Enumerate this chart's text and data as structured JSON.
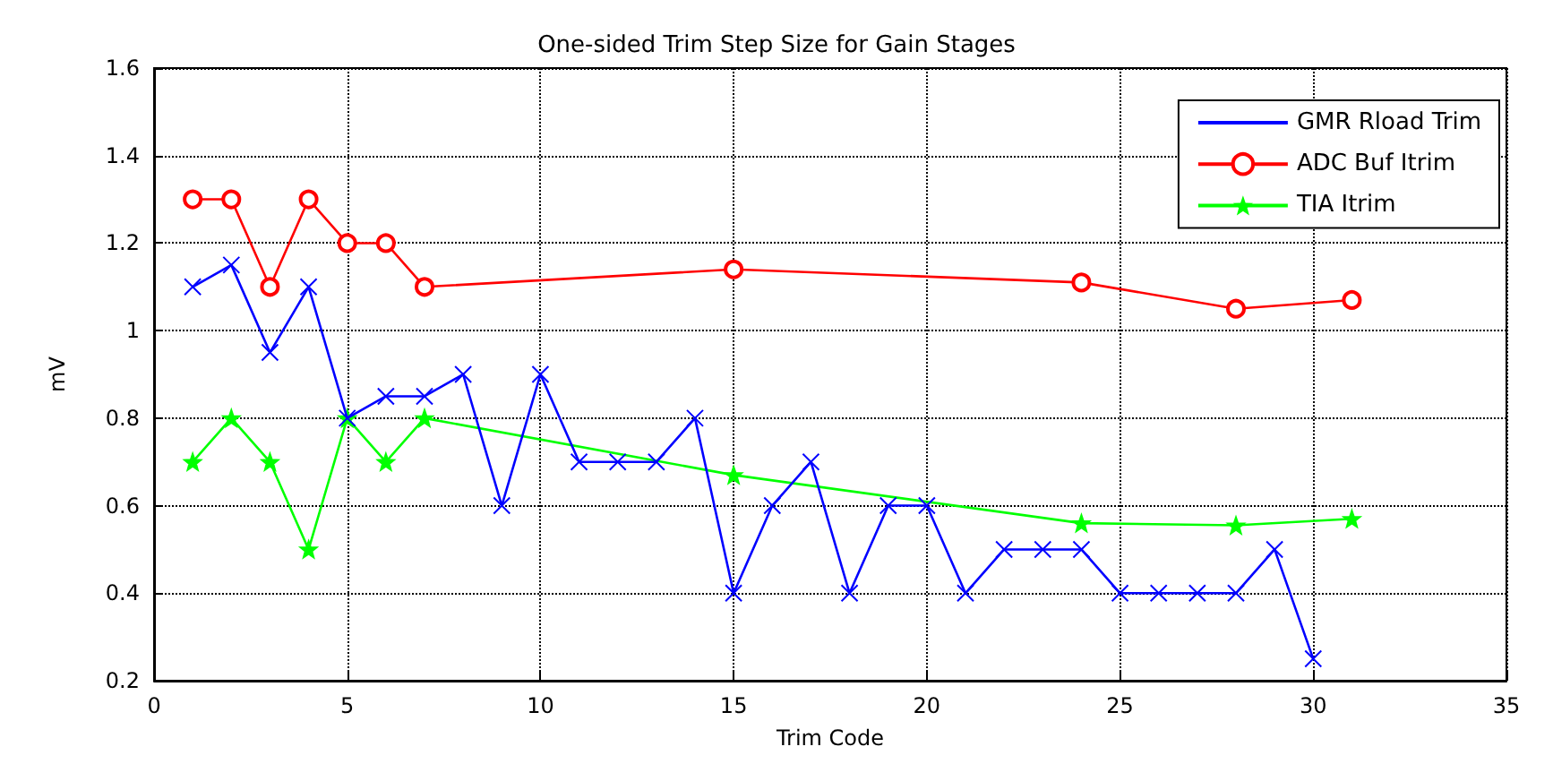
{
  "chart_data": {
    "type": "line",
    "title": "One-sided Trim Step Size for Gain Stages",
    "xlabel": "Trim Code",
    "ylabel": "mV",
    "xlim": [
      0,
      35
    ],
    "xticks": [
      0,
      5,
      10,
      15,
      20,
      25,
      30,
      35
    ],
    "ylim": [
      0.2,
      1.6
    ],
    "yticks": [
      0.2,
      0.4,
      0.6,
      0.8,
      1,
      1.2,
      1.4,
      1.6
    ],
    "grid": true,
    "legend": "top right",
    "series": [
      {
        "name": "GMR Rload Trim",
        "color": "#0000ff",
        "marker": "cross",
        "x": [
          1,
          2,
          3,
          4,
          5,
          6,
          7,
          8,
          9,
          10,
          11,
          12,
          13,
          14,
          15,
          16,
          17,
          18,
          19,
          20,
          21,
          22,
          23,
          24,
          25,
          26,
          27,
          28,
          29,
          30
        ],
        "values": [
          1.1,
          1.15,
          0.95,
          1.1,
          0.8,
          0.85,
          0.85,
          0.9,
          0.6,
          0.9,
          0.7,
          0.7,
          0.7,
          0.8,
          0.4,
          0.6,
          0.7,
          0.4,
          0.6,
          0.6,
          0.4,
          0.5,
          0.5,
          0.5,
          0.4,
          0.4,
          0.4,
          0.4,
          0.5,
          0.25
        ]
      },
      {
        "name": "ADC Buf Itrim",
        "color": "#ff0000",
        "marker": "circle",
        "x": [
          1,
          2,
          3,
          4,
          5,
          6,
          7,
          15,
          24,
          28,
          31
        ],
        "values": [
          1.3,
          1.3,
          1.1,
          1.3,
          1.2,
          1.2,
          1.1,
          1.14,
          1.11,
          1.05,
          1.07
        ]
      },
      {
        "name": "TIA Itrim",
        "color": "#00ff00",
        "marker": "star",
        "x": [
          1,
          2,
          3,
          4,
          5,
          6,
          7,
          15,
          24,
          28,
          31
        ],
        "values": [
          0.7,
          0.8,
          0.7,
          0.5,
          0.8,
          0.7,
          0.8,
          0.67,
          0.56,
          0.555,
          0.57
        ]
      }
    ]
  }
}
